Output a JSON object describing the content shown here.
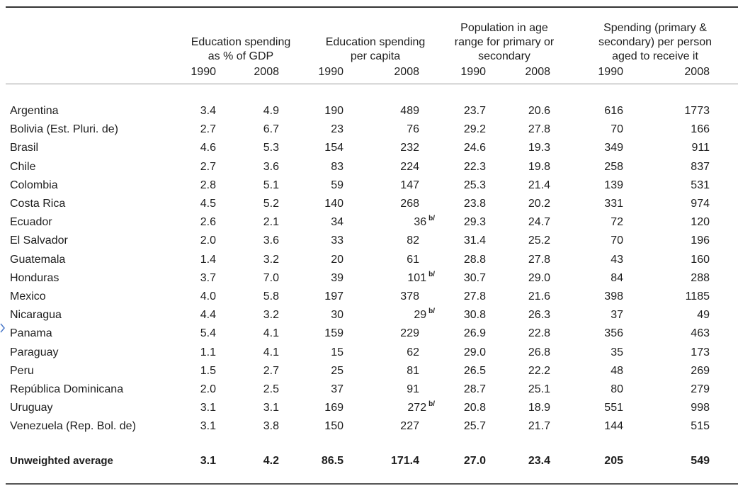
{
  "table": {
    "groups": [
      [
        "Education spending",
        "as % of GDP"
      ],
      [
        "Education spending",
        "per capita"
      ],
      [
        "Population in age",
        "range for primary or",
        "secondary"
      ],
      [
        "Spending (primary &",
        "secondary) per person",
        "aged to receive it"
      ]
    ],
    "years": [
      "1990",
      "2008",
      "1990",
      "2008",
      "1990",
      "2008",
      "1990",
      "2008"
    ],
    "rows": [
      {
        "label": "Argentina",
        "values": [
          "3.4",
          "4.9",
          "190",
          "489",
          "23.7",
          "20.6",
          "616",
          "1773"
        ]
      },
      {
        "label": "Bolivia (Est. Pluri. de)",
        "values": [
          "2.7",
          "6.7",
          "23",
          "76",
          "29.2",
          "27.8",
          "70",
          "166"
        ]
      },
      {
        "label": "Brasil",
        "values": [
          "4.6",
          "5.3",
          "154",
          "232",
          "24.6",
          "19.3",
          "349",
          "911"
        ]
      },
      {
        "label": "Chile",
        "values": [
          "2.7",
          "3.6",
          "83",
          "224",
          "22.3",
          "19.8",
          "258",
          "837"
        ]
      },
      {
        "label": "Colombia",
        "values": [
          "2.8",
          "5.1",
          "59",
          "147",
          "25.3",
          "21.4",
          "139",
          "531"
        ]
      },
      {
        "label": "Costa Rica",
        "values": [
          "4.5",
          "5.2",
          "140",
          "268",
          "23.8",
          "20.2",
          "331",
          "974"
        ]
      },
      {
        "label": "Ecuador",
        "values": [
          "2.6",
          "2.1",
          "34",
          "36",
          "29.3",
          "24.7",
          "72",
          "120"
        ],
        "note": "b/"
      },
      {
        "label": "El Salvador",
        "values": [
          "2.0",
          "3.6",
          "33",
          "82",
          "31.4",
          "25.2",
          "70",
          "196"
        ]
      },
      {
        "label": "Guatemala",
        "values": [
          "1.4",
          "3.2",
          "20",
          "61",
          "28.8",
          "27.8",
          "43",
          "160"
        ]
      },
      {
        "label": "Honduras",
        "values": [
          "3.7",
          "7.0",
          "39",
          "101",
          "30.7",
          "29.0",
          "84",
          "288"
        ],
        "note": "b/"
      },
      {
        "label": "Mexico",
        "values": [
          "4.0",
          "5.8",
          "197",
          "378",
          "27.8",
          "21.6",
          "398",
          "1185"
        ]
      },
      {
        "label": "Nicaragua",
        "values": [
          "4.4",
          "3.2",
          "30",
          "29",
          "30.8",
          "26.3",
          "37",
          "49"
        ],
        "note": "b/"
      },
      {
        "label": "Panama",
        "values": [
          "5.4",
          "4.1",
          "159",
          "229",
          "26.9",
          "22.8",
          "356",
          "463"
        ]
      },
      {
        "label": "Paraguay",
        "values": [
          "1.1",
          "4.1",
          "15",
          "62",
          "29.0",
          "26.8",
          "35",
          "173"
        ]
      },
      {
        "label": "Peru",
        "values": [
          "1.5",
          "2.7",
          "25",
          "81",
          "26.5",
          "22.2",
          "48",
          "269"
        ]
      },
      {
        "label": "República Dominicana",
        "values": [
          "2.0",
          "2.5",
          "37",
          "91",
          "28.7",
          "25.1",
          "80",
          "279"
        ]
      },
      {
        "label": "Uruguay",
        "values": [
          "3.1",
          "3.1",
          "169",
          "272",
          "20.8",
          "18.9",
          "551",
          "998"
        ],
        "note": "b/"
      },
      {
        "label": "Venezuela (Rep. Bol. de)",
        "values": [
          "3.1",
          "3.8",
          "150",
          "227",
          "25.7",
          "21.7",
          "144",
          "515"
        ]
      }
    ],
    "total": {
      "label": "Unweighted average",
      "values": [
        "3.1",
        "4.2",
        "86.5",
        "171.4",
        "27.0",
        "23.4",
        "205",
        "549"
      ]
    }
  }
}
